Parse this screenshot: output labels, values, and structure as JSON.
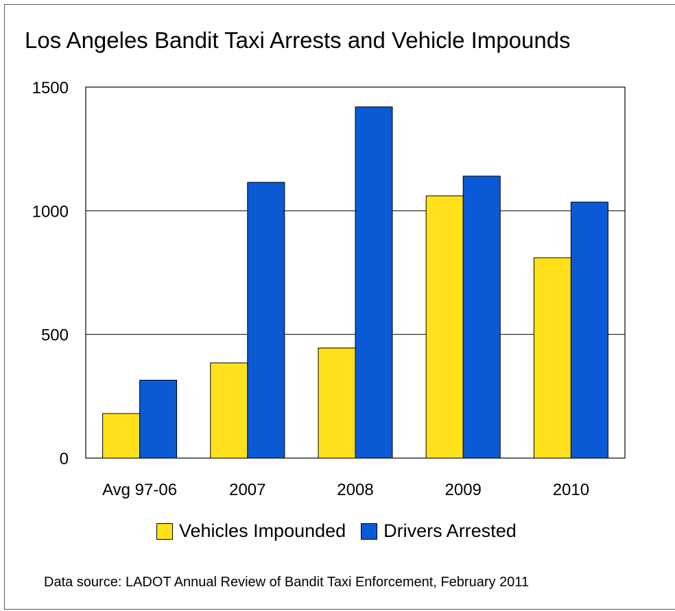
{
  "chart_data": {
    "type": "bar",
    "title": "Los Angeles Bandit Taxi Arrests and Vehicle Impounds",
    "source": "Data source: LADOT Annual Review of Bandit Taxi Enforcement, February 2011",
    "categories": [
      "Avg 97-06",
      "2007",
      "2008",
      "2009",
      "2010"
    ],
    "series": [
      {
        "name": "Vehicles Impounded",
        "color": "#FFE11B",
        "values": [
          180,
          385,
          445,
          1060,
          810
        ]
      },
      {
        "name": "Drivers Arrested",
        "color": "#0A5AD6",
        "values": [
          315,
          1115,
          1420,
          1140,
          1035
        ]
      }
    ],
    "ylim": [
      0,
      1500
    ],
    "yticks": [
      0,
      500,
      1000,
      1500
    ],
    "grid": true,
    "legend_position": "bottom"
  }
}
